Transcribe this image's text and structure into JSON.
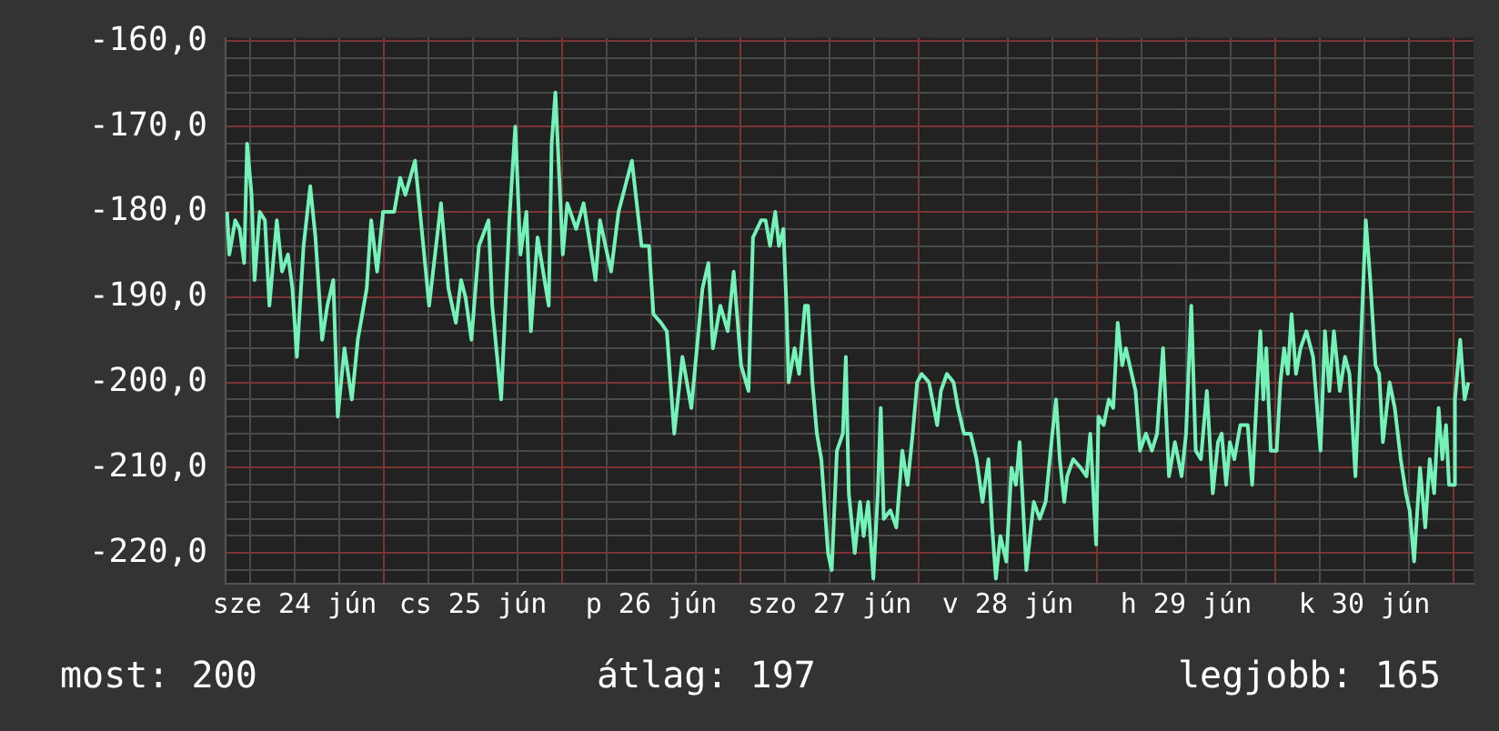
{
  "chart_data": {
    "type": "line",
    "x": [
      "--06-24T02:54",
      "--06-24T03:12",
      "--06-24T04:00",
      "--06-24T04:36",
      "--06-24T05:12",
      "--06-24T05:36",
      "--06-24T06:12",
      "--06-24T06:36",
      "--06-24T07:18",
      "--06-24T08:00",
      "--06-24T08:36",
      "--06-24T09:36",
      "--06-24T10:18",
      "--06-24T11:06",
      "--06-24T11:42",
      "--06-24T12:18",
      "--06-24T13:12",
      "--06-24T14:06",
      "--06-24T14:48",
      "--06-24T15:42",
      "--06-24T16:24",
      "--06-24T17:12",
      "--06-24T17:48",
      "--06-24T18:42",
      "--06-24T19:42",
      "--06-24T20:30",
      "--06-24T21:42",
      "--06-24T22:18",
      "--06-24T23:06",
      "--06-24T23:54",
      "--06-25T01:24",
      "--06-25T02:12",
      "--06-25T02:54",
      "--06-25T04:12",
      "--06-25T05:06",
      "--06-25T06:06",
      "--06-25T07:42",
      "--06-25T08:42",
      "--06-25T09:42",
      "--06-25T10:24",
      "--06-25T11:00",
      "--06-25T11:48",
      "--06-25T12:48",
      "--06-25T14:06",
      "--06-25T14:36",
      "--06-25T15:48",
      "--06-25T16:54",
      "--06-25T17:42",
      "--06-25T18:24",
      "--06-25T19:12",
      "--06-25T19:48",
      "--06-25T20:42",
      "--06-25T22:12",
      "--06-25T22:36",
      "--06-25T23:06",
      "--06-26T00:06",
      "--06-26T00:42",
      "--06-26T01:54",
      "--06-26T02:54",
      "--06-26T04:30",
      "--06-26T05:06",
      "--06-26T06:36",
      "--06-26T07:36",
      "--06-26T09:24",
      "--06-26T10:42",
      "--06-26T11:42",
      "--06-26T12:18",
      "--06-26T13:18",
      "--06-26T14:06",
      "--06-26T15:06",
      "--06-26T16:12",
      "--06-26T17:24",
      "--06-26T18:54",
      "--06-26T19:42",
      "--06-26T20:18",
      "--06-26T21:18",
      "--06-26T22:18",
      "--06-26T23:06",
      "--06-27T00:06",
      "--06-27T01:06",
      "--06-27T01:42",
      "--06-27T02:48",
      "--06-27T03:24",
      "--06-27T04:00",
      "--06-27T04:42",
      "--06-27T05:12",
      "--06-27T05:48",
      "--06-27T06:12",
      "--06-27T06:30",
      "--06-27T07:18",
      "--06-27T07:54",
      "--06-27T08:42",
      "--06-27T09:06",
      "--06-27T09:42",
      "--06-27T10:18",
      "--06-27T10:54",
      "--06-27T11:48",
      "--06-27T12:18",
      "--06-27T13:00",
      "--06-27T13:48",
      "--06-27T14:12",
      "--06-27T14:36",
      "--06-27T15:24",
      "--06-27T16:06",
      "--06-27T16:36",
      "--06-27T17:12",
      "--06-27T17:54",
      "--06-27T18:30",
      "--06-27T18:54",
      "--06-27T19:18",
      "--06-27T20:12",
      "--06-27T21:00",
      "--06-27T21:48",
      "--06-27T22:30",
      "--06-27T23:12",
      "--06-27T23:48",
      "--06-28T00:24",
      "--06-28T01:24",
      "--06-28T02:30",
      "--06-28T03:00",
      "--06-28T03:48",
      "--06-28T04:42",
      "--06-28T05:18",
      "--06-28T06:06",
      "--06-28T07:00",
      "--06-28T07:48",
      "--06-28T08:36",
      "--06-28T09:24",
      "--06-28T09:54",
      "--06-28T10:24",
      "--06-28T11:00",
      "--06-28T11:48",
      "--06-28T12:30",
      "--06-28T13:06",
      "--06-28T13:36",
      "--06-28T14:30",
      "--06-28T15:30",
      "--06-28T16:18",
      "--06-28T17:06",
      "--06-28T18:00",
      "--06-28T18:30",
      "--06-28T19:00",
      "--06-28T19:36",
      "--06-28T20:00",
      "--06-28T20:48",
      "--06-28T21:48",
      "--06-28T22:36",
      "--06-28T23:06",
      "--06-28T23:54",
      "--06-29T00:12",
      "--06-29T00:54",
      "--06-29T01:36",
      "--06-29T02:12",
      "--06-29T02:48",
      "--06-29T03:24",
      "--06-29T03:54",
      "--06-29T05:12",
      "--06-29T05:48",
      "--06-29T06:36",
      "--06-29T07:24",
      "--06-29T08:06",
      "--06-29T08:54",
      "--06-29T09:42",
      "--06-29T10:30",
      "--06-29T11:24",
      "--06-29T12:00",
      "--06-29T12:42",
      "--06-29T13:18",
      "--06-29T14:00",
      "--06-29T14:48",
      "--06-29T15:36",
      "--06-29T16:18",
      "--06-29T16:48",
      "--06-29T17:24",
      "--06-29T17:54",
      "--06-29T18:30",
      "--06-29T19:18",
      "--06-29T20:18",
      "--06-29T20:54",
      "--06-29T21:30",
      "--06-29T22:00",
      "--06-29T22:24",
      "--06-29T22:48",
      "--06-29T23:24",
      "--06-30T00:12",
      "--06-30T00:42",
      "--06-30T01:12",
      "--06-30T01:42",
      "--06-30T02:12",
      "--06-30T02:48",
      "--06-30T03:24",
      "--06-30T04:12",
      "--06-30T05:06",
      "--06-30T06:06",
      "--06-30T06:42",
      "--06-30T07:18",
      "--06-30T07:54",
      "--06-30T08:42",
      "--06-30T09:24",
      "--06-30T10:00",
      "--06-30T10:48",
      "--06-30T11:36",
      "--06-30T12:12",
      "--06-30T12:48",
      "--06-30T13:30",
      "--06-30T14:00",
      "--06-30T14:30",
      "--06-30T15:24",
      "--06-30T16:06",
      "--06-30T16:54",
      "--06-30T17:36",
      "--06-30T18:06",
      "--06-30T18:42",
      "--06-30T19:30",
      "--06-30T20:12",
      "--06-30T20:48",
      "--06-30T21:24",
      "--06-30T22:00",
      "--06-30T22:30",
      "--06-30T23:00",
      "--06-30T23:24",
      "--07-01T00:06",
      "--07-01T00:12",
      "--07-01T00:54",
      "--07-01T01:30",
      "--07-01T02:00"
    ],
    "series": [
      {
        "color": "#74f2b8",
        "values": [
          -180,
          -185,
          -181,
          -182,
          -186,
          -172,
          -178,
          -188,
          -180,
          -181,
          -191,
          -181,
          -187,
          -185,
          -189,
          -197,
          -184,
          -177,
          -183,
          -195,
          -191,
          -188,
          -204,
          -196,
          -202,
          -195,
          -189,
          -181,
          -187,
          -180,
          -180,
          -176,
          -178,
          -174,
          -182,
          -191,
          -179,
          -189,
          -193,
          -188,
          -190,
          -195,
          -184,
          -181,
          -191,
          -202,
          -181,
          -170,
          -185,
          -180,
          -194,
          -183,
          -191,
          -172,
          -166,
          -185,
          -179,
          -182,
          -179,
          -188,
          -181,
          -187,
          -180,
          -174,
          -184,
          -184,
          -192,
          -193,
          -194,
          -206,
          -197,
          -203,
          -189,
          -186,
          -196,
          -191,
          -194,
          -187,
          -198,
          -201,
          -183,
          -181,
          -181,
          -184,
          -180,
          -184,
          -182,
          -191,
          -200,
          -196,
          -199,
          -191,
          -191,
          -200,
          -206,
          -209,
          -220,
          -222,
          -208,
          -206,
          -197,
          -213,
          -220,
          -214,
          -218,
          -214,
          -223,
          -213,
          -203,
          -216,
          -215,
          -217,
          -208,
          -212,
          -206,
          -200,
          -199,
          -200,
          -205,
          -201,
          -199,
          -200,
          -203,
          -206,
          -206,
          -209,
          -214,
          -209,
          -217,
          -223,
          -218,
          -221,
          -210,
          -212,
          -207,
          -222,
          -214,
          -216,
          -214,
          -206,
          -202,
          -209,
          -214,
          -211,
          -209,
          -210,
          -211,
          -206,
          -219,
          -204,
          -205,
          -202,
          -203,
          -193,
          -198,
          -196,
          -201,
          -208,
          -206,
          -208,
          -206,
          -196,
          -211,
          -207,
          -211,
          -206,
          -191,
          -208,
          -209,
          -201,
          -213,
          -207,
          -206,
          -212,
          -207,
          -209,
          -205,
          -205,
          -212,
          -202,
          -194,
          -202,
          -196,
          -208,
          -208,
          -200,
          -196,
          -199,
          -192,
          -199,
          -196,
          -194,
          -197,
          -208,
          -194,
          -201,
          -194,
          -201,
          -197,
          -199,
          -211,
          -194,
          -181,
          -188,
          -198,
          -199,
          -207,
          -200,
          -203,
          -209,
          -213,
          -215,
          -221,
          -210,
          -217,
          -209,
          -213,
          -203,
          -209,
          -205,
          -212,
          -212,
          -202,
          -195,
          -202,
          -200
        ]
      }
    ],
    "xlim": [
      "--06-24T02:42",
      "--07-01T02:42"
    ],
    "xticks": [
      {
        "value": "--06-24T06:00",
        "label": null
      },
      {
        "value": "--06-24T12:00",
        "label": "sze 24 jún"
      },
      {
        "value": "--06-24T18:00",
        "label": null
      },
      {
        "value": "--06-25T00:00",
        "label": null
      },
      {
        "value": "--06-25T06:00",
        "label": null
      },
      {
        "value": "--06-25T12:00",
        "label": "cs 25 jún"
      },
      {
        "value": "--06-25T18:00",
        "label": null
      },
      {
        "value": "--06-26T00:00",
        "label": null
      },
      {
        "value": "--06-26T06:00",
        "label": null
      },
      {
        "value": "--06-26T12:00",
        "label": "p 26 jún"
      },
      {
        "value": "--06-26T18:00",
        "label": null
      },
      {
        "value": "--06-27T00:00",
        "label": null
      },
      {
        "value": "--06-27T06:00",
        "label": null
      },
      {
        "value": "--06-27T12:00",
        "label": "szo 27 jún"
      },
      {
        "value": "--06-27T18:00",
        "label": null
      },
      {
        "value": "--06-28T00:00",
        "label": null
      },
      {
        "value": "--06-28T06:00",
        "label": null
      },
      {
        "value": "--06-28T12:00",
        "label": "v 28 jún"
      },
      {
        "value": "--06-28T18:00",
        "label": null
      },
      {
        "value": "--06-29T00:00",
        "label": null
      },
      {
        "value": "--06-29T06:00",
        "label": null
      },
      {
        "value": "--06-29T12:00",
        "label": "h 29 jún"
      },
      {
        "value": "--06-29T18:00",
        "label": null
      },
      {
        "value": "--06-30T00:00",
        "label": null
      },
      {
        "value": "--06-30T06:00",
        "label": null
      },
      {
        "value": "--06-30T12:00",
        "label": "k 30 jún"
      },
      {
        "value": "--06-30T18:00",
        "label": null
      },
      {
        "value": "--07-01T00:00",
        "label": null
      }
    ],
    "ylim": [
      -223.6,
      -159.6
    ],
    "yticks": [
      {
        "value": -222,
        "label": null
      },
      {
        "value": -220,
        "label": "-220,0"
      },
      {
        "value": -218,
        "label": null
      },
      {
        "value": -216,
        "label": null
      },
      {
        "value": -214,
        "label": null
      },
      {
        "value": -212,
        "label": null
      },
      {
        "value": -210,
        "label": "-210,0"
      },
      {
        "value": -208,
        "label": null
      },
      {
        "value": -206,
        "label": null
      },
      {
        "value": -204,
        "label": null
      },
      {
        "value": -202,
        "label": null
      },
      {
        "value": -200,
        "label": "-200,0"
      },
      {
        "value": -198,
        "label": null
      },
      {
        "value": -196,
        "label": null
      },
      {
        "value": -194,
        "label": null
      },
      {
        "value": -192,
        "label": null
      },
      {
        "value": -190,
        "label": "-190,0"
      },
      {
        "value": -188,
        "label": null
      },
      {
        "value": -186,
        "label": null
      },
      {
        "value": -184,
        "label": null
      },
      {
        "value": -182,
        "label": null
      },
      {
        "value": -180,
        "label": "-180,0"
      },
      {
        "value": -178,
        "label": null
      },
      {
        "value": -176,
        "label": null
      },
      {
        "value": -174,
        "label": null
      },
      {
        "value": -172,
        "label": null
      },
      {
        "value": -170,
        "label": "-170,0"
      },
      {
        "value": -168,
        "label": null
      },
      {
        "value": -166,
        "label": null
      },
      {
        "value": -164,
        "label": null
      },
      {
        "value": -162,
        "label": null
      },
      {
        "value": -160,
        "label": "-160,0"
      }
    ],
    "grid": true,
    "legend": false,
    "marker": "none",
    "line_style": "solid",
    "annotations": [
      "most: 200",
      "átlag: 197",
      "legjobb: 165"
    ]
  }
}
